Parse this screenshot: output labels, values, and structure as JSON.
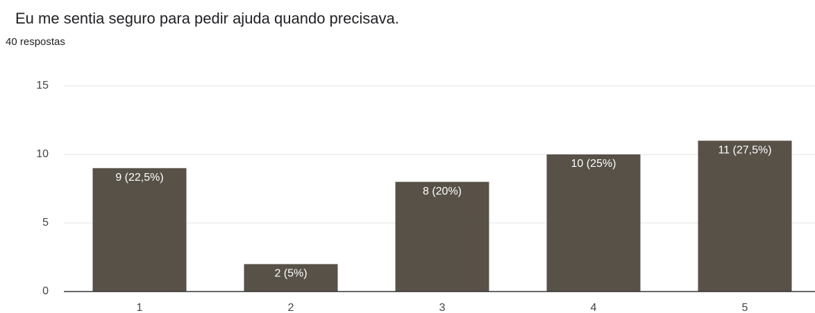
{
  "chart_data": {
    "type": "bar",
    "title": "Eu me sentia seguro para pedir ajuda quando precisava.",
    "subtitle": "40 respostas",
    "categories": [
      "1",
      "2",
      "3",
      "4",
      "5"
    ],
    "values": [
      9,
      2,
      8,
      10,
      11
    ],
    "value_labels": [
      "9 (22,5%)",
      "2 (5%)",
      "8 (20%)",
      "10 (25%)",
      "11 (27,5%)"
    ],
    "color": "#575148",
    "ylim": [
      0,
      15
    ],
    "yticks": [
      0,
      5,
      10,
      15
    ],
    "grid": true
  }
}
